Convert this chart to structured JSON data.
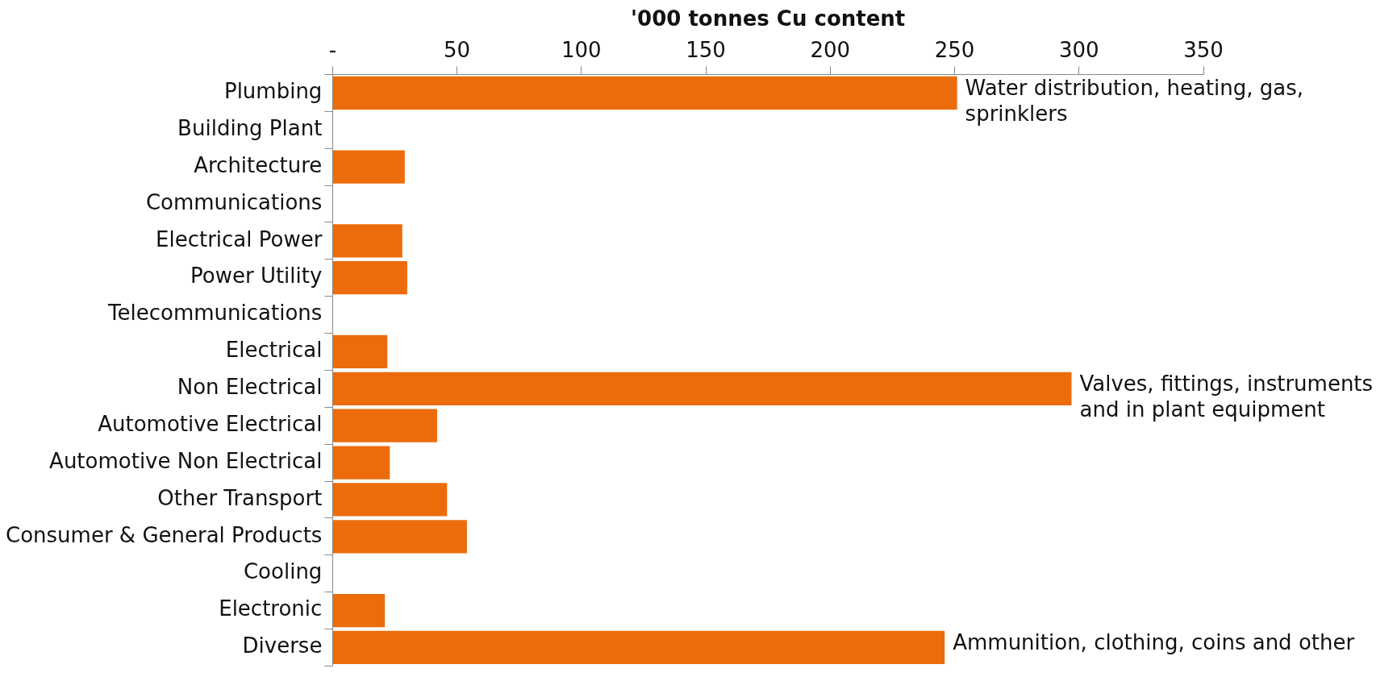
{
  "chart_data": {
    "type": "bar",
    "orientation": "horizontal",
    "xlabel": "'000 tonnes Cu content",
    "categories": [
      "Plumbing",
      "Building Plant",
      "Architecture",
      "Communications",
      "Electrical Power",
      "Power Utility",
      "Telecommunications",
      "Electrical",
      "Non Electrical",
      "Automotive Electrical",
      "Automotive Non Electrical",
      "Other Transport",
      "Consumer & General Products",
      "Cooling",
      "Electronic",
      "Diverse"
    ],
    "values": [
      251,
      null,
      29,
      null,
      28,
      30,
      null,
      22,
      297,
      42,
      23,
      46,
      54,
      null,
      21,
      246
    ],
    "color": "#ec6c0c",
    "xlim": [
      0,
      350
    ],
    "xticks": [
      {
        "value": 0,
        "label": "-"
      },
      50,
      100,
      150,
      200,
      250,
      300,
      350
    ],
    "grid": false,
    "legend": false,
    "annotations": [
      {
        "text": "Water distribution, heating, gas, sprinklers",
        "x": 251,
        "y": "Plumbing"
      },
      {
        "text": "Valves, fittings, instruments and in plant equipment",
        "x": 297,
        "y": "Non Electrical"
      },
      {
        "text": "Ammunition, clothing, coins and other",
        "x": 246,
        "y": "Diverse"
      }
    ]
  }
}
